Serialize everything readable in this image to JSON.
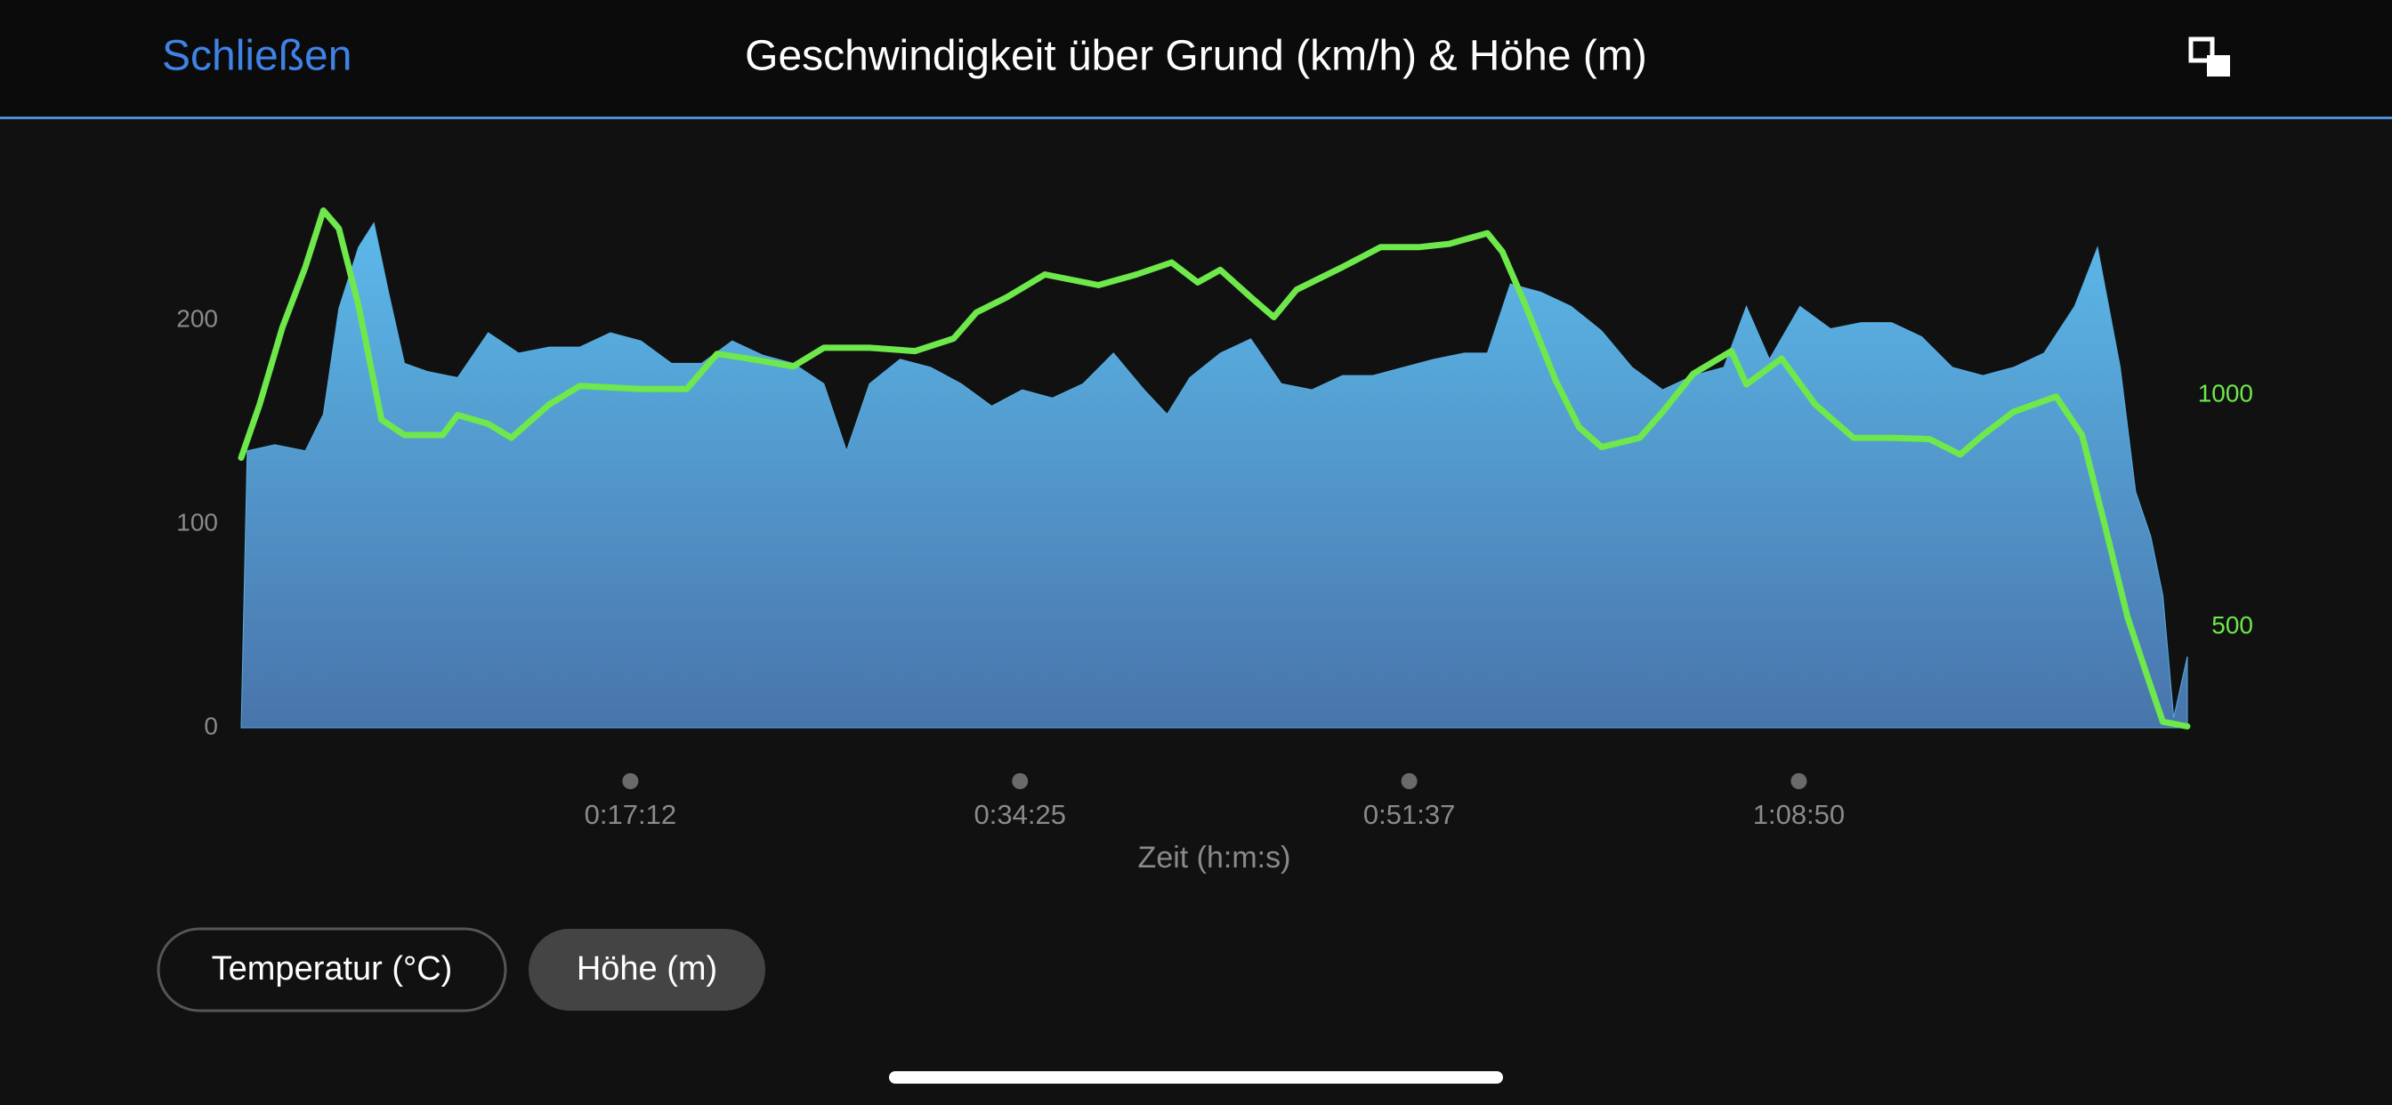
{
  "header": {
    "close": "Schließen"
  },
  "buttons": [
    "Temperatur (°C)",
    "Höhe (m)"
  ],
  "chart_data": {
    "type": "area-line",
    "title": "Geschwindigkeit über Grund (km/h) & Höhe (m)",
    "xlabel": "Zeit (h:m:s)",
    "xlim": [
      0,
      5160
    ],
    "xticks": [
      {
        "value": 1032,
        "label": "0:17:12"
      },
      {
        "value": 2065,
        "label": "0:34:25"
      },
      {
        "value": 3097,
        "label": "0:51:37"
      },
      {
        "value": 4130,
        "label": "1:08:50"
      }
    ],
    "ylim": [
      0,
      260
    ],
    "yticks": [
      0,
      100,
      200
    ],
    "y2lim": [
      283,
      1424
    ],
    "y2ticks": [
      500,
      1000
    ],
    "series": [
      {
        "name": "Geschwindigkeit über Grund (km/h)",
        "color": "#55aee2",
        "axis": "y",
        "x": [
          0,
          16,
          89,
          170,
          218,
          259,
          311,
          352,
          392,
          433,
          493,
          574,
          655,
          736,
          817,
          898,
          979,
          1060,
          1141,
          1221,
          1302,
          1383,
          1464,
          1545,
          1605,
          1666,
          1747,
          1828,
          1909,
          1990,
          2071,
          2151,
          2232,
          2313,
          2394,
          2455,
          2515,
          2596,
          2677,
          2758,
          2839,
          2920,
          3001,
          3082,
          3162,
          3243,
          3304,
          3365,
          3446,
          3526,
          3607,
          3688,
          3769,
          3850,
          3931,
          3991,
          4052,
          4133,
          4214,
          4295,
          4376,
          4456,
          4537,
          4618,
          4699,
          4780,
          4861,
          4922,
          4982,
          5023,
          5063,
          5095,
          5124,
          5160
        ],
        "values": [
          0,
          136,
          139,
          136,
          154,
          206,
          236,
          248,
          213,
          179,
          175,
          172,
          194,
          184,
          187,
          187,
          194,
          190,
          179,
          179,
          190,
          183,
          179,
          169,
          136,
          169,
          181,
          177,
          169,
          158,
          166,
          162,
          169,
          184,
          166,
          154,
          172,
          184,
          191,
          169,
          166,
          173,
          173,
          177,
          181,
          184,
          184,
          218,
          214,
          207,
          195,
          177,
          166,
          173,
          177,
          207,
          181,
          207,
          196,
          199,
          199,
          192,
          177,
          173,
          177,
          184,
          207,
          236,
          177,
          116,
          94,
          65,
          5,
          35
        ]
      },
      {
        "name": "Höhe (m)",
        "color": "#6ee84a",
        "axis": "y2",
        "x": [
          0,
          49,
          109,
          170,
          218,
          259,
          311,
          372,
          433,
          534,
          574,
          655,
          716,
          817,
          898,
          1060,
          1181,
          1262,
          1343,
          1464,
          1545,
          1666,
          1787,
          1889,
          1949,
          2030,
          2131,
          2273,
          2374,
          2467,
          2536,
          2596,
          2677,
          2738,
          2798,
          2920,
          3021,
          3122,
          3203,
          3304,
          3344,
          3405,
          3486,
          3547,
          3607,
          3708,
          3769,
          3850,
          3951,
          3991,
          4084,
          4173,
          4275,
          4376,
          4477,
          4558,
          4618,
          4699,
          4812,
          4881,
          4942,
          5002,
          5063,
          5095,
          5160
        ],
        "values": [
          865,
          980,
          1145,
          1276,
          1398,
          1359,
          1194,
          947,
          914,
          914,
          957,
          938,
          908,
          980,
          1020,
          1013,
          1013,
          1089,
          1079,
          1062,
          1102,
          1102,
          1095,
          1122,
          1178,
          1211,
          1260,
          1237,
          1260,
          1286,
          1243,
          1270,
          1211,
          1168,
          1227,
          1276,
          1319,
          1319,
          1326,
          1349,
          1309,
          1194,
          1030,
          931,
          888,
          908,
          964,
          1046,
          1095,
          1023,
          1079,
          980,
          908,
          908,
          905,
          872,
          914,
          964,
          997,
          914,
          717,
          520,
          372,
          296,
          286
        ]
      }
    ]
  }
}
